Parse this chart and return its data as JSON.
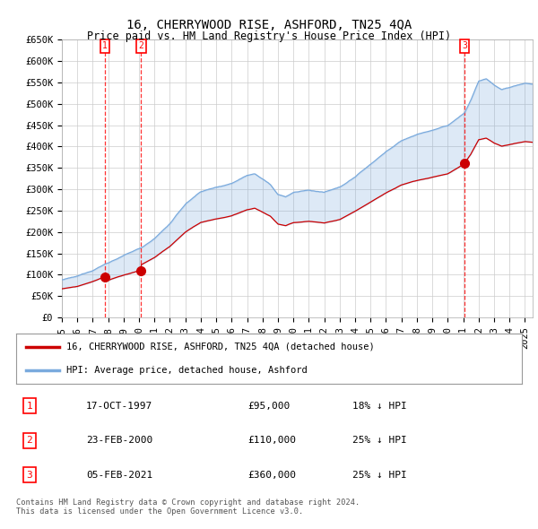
{
  "title": "16, CHERRYWOOD RISE, ASHFORD, TN25 4QA",
  "subtitle": "Price paid vs. HM Land Registry's House Price Index (HPI)",
  "ylim": [
    0,
    650000
  ],
  "yticks": [
    0,
    50000,
    100000,
    150000,
    200000,
    250000,
    300000,
    350000,
    400000,
    450000,
    500000,
    550000,
    600000,
    650000
  ],
  "ytick_labels": [
    "£0",
    "£50K",
    "£100K",
    "£150K",
    "£200K",
    "£250K",
    "£300K",
    "£350K",
    "£400K",
    "£450K",
    "£500K",
    "£550K",
    "£600K",
    "£650K"
  ],
  "xlim_start": 1995.0,
  "xlim_end": 2025.5,
  "bg_color": "#ffffff",
  "grid_color": "#cccccc",
  "hpi_color": "#7aaadd",
  "price_color": "#cc0000",
  "fill_color": "#ddeeff",
  "transactions": [
    {
      "label": "1",
      "date": "17-OCT-1997",
      "price": 95000,
      "hpi_pct": "18% ↓ HPI",
      "year": 1997.79
    },
    {
      "label": "2",
      "date": "23-FEB-2000",
      "price": 110000,
      "hpi_pct": "25% ↓ HPI",
      "year": 2000.14
    },
    {
      "label": "3",
      "date": "05-FEB-2021",
      "price": 360000,
      "hpi_pct": "25% ↓ HPI",
      "year": 2021.09
    }
  ],
  "legend_property_label": "16, CHERRYWOOD RISE, ASHFORD, TN25 4QA (detached house)",
  "legend_hpi_label": "HPI: Average price, detached house, Ashford",
  "footer": "Contains HM Land Registry data © Crown copyright and database right 2024.\nThis data is licensed under the Open Government Licence v3.0.",
  "title_fontsize": 10,
  "subtitle_fontsize": 8.5,
  "tick_fontsize": 7.5,
  "annotation_fontsize": 7
}
